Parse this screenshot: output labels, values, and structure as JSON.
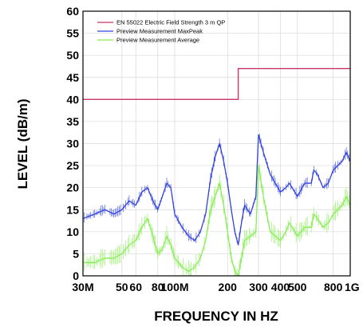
{
  "chart_data": {
    "type": "line",
    "xlabel": "FREQUENCY IN HZ",
    "ylabel": "LEVEL (dB/m)",
    "x_scale": "log",
    "xlim": [
      30,
      1000
    ],
    "ylim": [
      0,
      60
    ],
    "y_ticks": [
      0,
      5,
      10,
      15,
      20,
      25,
      30,
      35,
      40,
      45,
      50,
      55,
      60
    ],
    "x_ticks": [
      {
        "value": 30,
        "label": "30M"
      },
      {
        "value": 50,
        "label": "50"
      },
      {
        "value": 60,
        "label": "60"
      },
      {
        "value": 80,
        "label": "80"
      },
      {
        "value": 100,
        "label": "100M"
      },
      {
        "value": 200,
        "label": "200"
      },
      {
        "value": 300,
        "label": "300"
      },
      {
        "value": 400,
        "label": "400"
      },
      {
        "value": 500,
        "label": "500"
      },
      {
        "value": 800,
        "label": "800"
      },
      {
        "value": 1000,
        "label": "1G"
      }
    ],
    "grid": true,
    "legend_position": "top-left",
    "series": [
      {
        "name": "EN 55022 Electric  Field Strength 3 m QP",
        "color": "#cc3366",
        "style": "step",
        "x": [
          30,
          230,
          230,
          1000
        ],
        "y": [
          40,
          40,
          47,
          47
        ]
      },
      {
        "name": "Preview Measurement  MaxPeak",
        "color": "#3344dd",
        "x": [
          30,
          35,
          40,
          45,
          50,
          55,
          60,
          65,
          70,
          75,
          80,
          85,
          90,
          95,
          100,
          110,
          120,
          130,
          140,
          150,
          160,
          170,
          180,
          190,
          200,
          210,
          220,
          230,
          240,
          250,
          270,
          290,
          300,
          320,
          350,
          400,
          430,
          450,
          500,
          550,
          600,
          620,
          650,
          700,
          750,
          800,
          850,
          900,
          950,
          1000
        ],
        "y": [
          13,
          14,
          15,
          14,
          15,
          17,
          16,
          19,
          20,
          17,
          15,
          18,
          21,
          20,
          14,
          11,
          9,
          8,
          10,
          14,
          22,
          27,
          30,
          26,
          21,
          15,
          10,
          7,
          12,
          16,
          14,
          18,
          32,
          28,
          23,
          19,
          20,
          21,
          18,
          21,
          21,
          24,
          23,
          20,
          21,
          24,
          25,
          26,
          28,
          26
        ]
      },
      {
        "name": "Preview Measurement Average",
        "color": "#88ee55",
        "x": [
          30,
          35,
          40,
          45,
          50,
          55,
          60,
          65,
          70,
          75,
          80,
          85,
          90,
          95,
          100,
          110,
          120,
          130,
          140,
          150,
          160,
          170,
          180,
          190,
          200,
          210,
          220,
          230,
          240,
          250,
          270,
          290,
          300,
          320,
          350,
          400,
          430,
          450,
          500,
          550,
          600,
          620,
          650,
          700,
          750,
          800,
          850,
          900,
          950,
          1000
        ],
        "y": [
          3,
          3,
          4,
          4,
          5,
          7,
          8,
          11,
          13,
          9,
          5,
          6,
          9,
          7,
          4,
          2,
          1,
          2,
          4,
          8,
          15,
          18,
          21,
          16,
          10,
          4,
          1,
          0,
          4,
          8,
          9,
          10,
          25,
          18,
          10,
          8,
          10,
          12,
          9,
          11,
          11,
          14,
          13,
          11,
          12,
          14,
          15,
          16,
          18,
          16
        ]
      }
    ]
  }
}
